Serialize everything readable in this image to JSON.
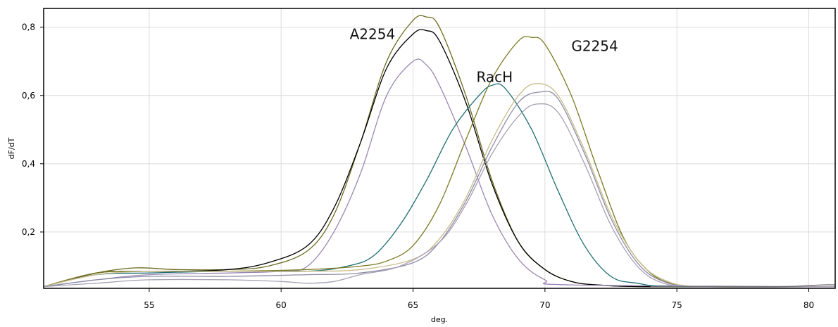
{
  "chart_data": {
    "type": "line",
    "xlabel": "deg.",
    "ylabel": "dF/dT",
    "xlim": [
      51,
      81
    ],
    "ylim": [
      0.035,
      0.855
    ],
    "x_ticks": [
      55,
      60,
      65,
      70,
      75,
      80
    ],
    "x_tick_labels": [
      "55",
      "60",
      "65",
      "70",
      "75",
      "80"
    ],
    "y_ticks": [
      0.2,
      0.4,
      0.6,
      0.8
    ],
    "y_tick_labels": [
      "0,2",
      "0,4",
      "0,6",
      "0,8"
    ],
    "grid": true,
    "annotations": [
      {
        "text": "A2254",
        "x": 62.6,
        "y": 0.765
      },
      {
        "text": "RacH",
        "x": 67.4,
        "y": 0.64
      },
      {
        "text": "G2254",
        "x": 71.0,
        "y": 0.73
      }
    ],
    "series": [
      {
        "color": "#6b6b1e",
        "points": [
          [
            51,
            0.04
          ],
          [
            53,
            0.08
          ],
          [
            54.5,
            0.095
          ],
          [
            56,
            0.09
          ],
          [
            58,
            0.09
          ],
          [
            59.5,
            0.1
          ],
          [
            61,
            0.145
          ],
          [
            62,
            0.25
          ],
          [
            63,
            0.46
          ],
          [
            64,
            0.7
          ],
          [
            65,
            0.82
          ],
          [
            65.5,
            0.83
          ],
          [
            66,
            0.8
          ],
          [
            67,
            0.6
          ],
          [
            68,
            0.35
          ],
          [
            69,
            0.17
          ],
          [
            70,
            0.09
          ],
          [
            71,
            0.055
          ],
          [
            72,
            0.045
          ],
          [
            74,
            0.04
          ],
          [
            81,
            0.04
          ]
        ]
      },
      {
        "color": "#000000",
        "points": [
          [
            51,
            0.04
          ],
          [
            53,
            0.08
          ],
          [
            54.5,
            0.085
          ],
          [
            56,
            0.085
          ],
          [
            58,
            0.09
          ],
          [
            59.5,
            0.11
          ],
          [
            61,
            0.16
          ],
          [
            62,
            0.27
          ],
          [
            63,
            0.46
          ],
          [
            64,
            0.68
          ],
          [
            65,
            0.78
          ],
          [
            65.5,
            0.79
          ],
          [
            66,
            0.76
          ],
          [
            67,
            0.58
          ],
          [
            68,
            0.34
          ],
          [
            69,
            0.17
          ],
          [
            70,
            0.09
          ],
          [
            71,
            0.055
          ],
          [
            72,
            0.045
          ],
          [
            74,
            0.04
          ],
          [
            81,
            0.04
          ]
        ]
      },
      {
        "color": "#9a86b4",
        "points": [
          [
            51,
            0.04
          ],
          [
            53,
            0.06
          ],
          [
            55,
            0.075
          ],
          [
            58,
            0.08
          ],
          [
            60,
            0.085
          ],
          [
            61,
            0.1
          ],
          [
            62,
            0.2
          ],
          [
            63,
            0.37
          ],
          [
            64,
            0.6
          ],
          [
            65,
            0.7
          ],
          [
            65.5,
            0.69
          ],
          [
            66,
            0.63
          ],
          [
            67,
            0.45
          ],
          [
            68,
            0.25
          ],
          [
            69,
            0.12
          ],
          [
            70,
            0.06
          ],
          [
            71,
            0.045
          ],
          [
            81,
            0.04
          ]
        ]
      },
      {
        "color": "#1f6e72",
        "points": [
          [
            51,
            0.04
          ],
          [
            53,
            0.075
          ],
          [
            55,
            0.08
          ],
          [
            58,
            0.085
          ],
          [
            61,
            0.085
          ],
          [
            62.5,
            0.1
          ],
          [
            63.5,
            0.13
          ],
          [
            64.5,
            0.22
          ],
          [
            65.5,
            0.35
          ],
          [
            66.5,
            0.5
          ],
          [
            67.5,
            0.6
          ],
          [
            68,
            0.63
          ],
          [
            68.5,
            0.62
          ],
          [
            69.5,
            0.5
          ],
          [
            70.5,
            0.32
          ],
          [
            71.5,
            0.16
          ],
          [
            72.5,
            0.07
          ],
          [
            73.5,
            0.05
          ],
          [
            75,
            0.04
          ],
          [
            81,
            0.04
          ]
        ]
      },
      {
        "color": "#7a7a24",
        "points": [
          [
            51,
            0.04
          ],
          [
            53,
            0.08
          ],
          [
            55,
            0.085
          ],
          [
            58,
            0.085
          ],
          [
            61,
            0.09
          ],
          [
            63,
            0.1
          ],
          [
            64,
            0.115
          ],
          [
            65,
            0.16
          ],
          [
            66,
            0.28
          ],
          [
            67,
            0.47
          ],
          [
            68,
            0.65
          ],
          [
            69,
            0.76
          ],
          [
            69.5,
            0.77
          ],
          [
            70,
            0.75
          ],
          [
            71,
            0.6
          ],
          [
            72,
            0.38
          ],
          [
            73,
            0.18
          ],
          [
            74,
            0.08
          ],
          [
            75,
            0.045
          ],
          [
            76,
            0.04
          ],
          [
            81,
            0.04
          ]
        ]
      },
      {
        "color": "#c9bc8a",
        "points": [
          [
            51,
            0.04
          ],
          [
            53,
            0.075
          ],
          [
            55,
            0.085
          ],
          [
            58,
            0.085
          ],
          [
            61,
            0.085
          ],
          [
            63,
            0.09
          ],
          [
            65,
            0.12
          ],
          [
            66,
            0.18
          ],
          [
            67,
            0.3
          ],
          [
            68,
            0.47
          ],
          [
            69,
            0.6
          ],
          [
            69.7,
            0.635
          ],
          [
            70.5,
            0.6
          ],
          [
            71.5,
            0.44
          ],
          [
            72.5,
            0.25
          ],
          [
            73.5,
            0.12
          ],
          [
            74.5,
            0.06
          ],
          [
            76,
            0.04
          ],
          [
            81,
            0.04
          ]
        ]
      },
      {
        "color": "#8c8ca6",
        "points": [
          [
            51,
            0.04
          ],
          [
            53,
            0.06
          ],
          [
            55,
            0.07
          ],
          [
            58,
            0.07
          ],
          [
            61,
            0.075
          ],
          [
            63,
            0.08
          ],
          [
            65,
            0.11
          ],
          [
            66,
            0.17
          ],
          [
            67,
            0.29
          ],
          [
            68,
            0.45
          ],
          [
            69,
            0.58
          ],
          [
            69.8,
            0.61
          ],
          [
            70.5,
            0.59
          ],
          [
            71.5,
            0.43
          ],
          [
            72.5,
            0.24
          ],
          [
            73.5,
            0.11
          ],
          [
            74.5,
            0.055
          ],
          [
            76,
            0.04
          ],
          [
            81,
            0.04
          ]
        ]
      },
      {
        "color": "#a8a0b4",
        "points": [
          [
            51,
            0.04
          ],
          [
            53,
            0.05
          ],
          [
            55,
            0.06
          ],
          [
            58,
            0.06
          ],
          [
            60,
            0.055
          ],
          [
            61,
            0.05
          ],
          [
            62,
            0.055
          ],
          [
            63,
            0.075
          ],
          [
            64.5,
            0.1
          ],
          [
            66,
            0.17
          ],
          [
            67,
            0.28
          ],
          [
            68,
            0.43
          ],
          [
            69,
            0.54
          ],
          [
            69.7,
            0.575
          ],
          [
            70.5,
            0.55
          ],
          [
            71.5,
            0.4
          ],
          [
            72.5,
            0.22
          ],
          [
            73.5,
            0.1
          ],
          [
            74.5,
            0.05
          ],
          [
            76,
            0.04
          ],
          [
            81,
            0.04
          ]
        ]
      },
      {
        "color": "#6f6f6f",
        "points": [
          [
            74,
            0.04
          ],
          [
            76,
            0.04
          ],
          [
            79,
            0.04
          ],
          [
            80.5,
            0.045
          ],
          [
            81,
            0.045
          ]
        ]
      }
    ]
  }
}
